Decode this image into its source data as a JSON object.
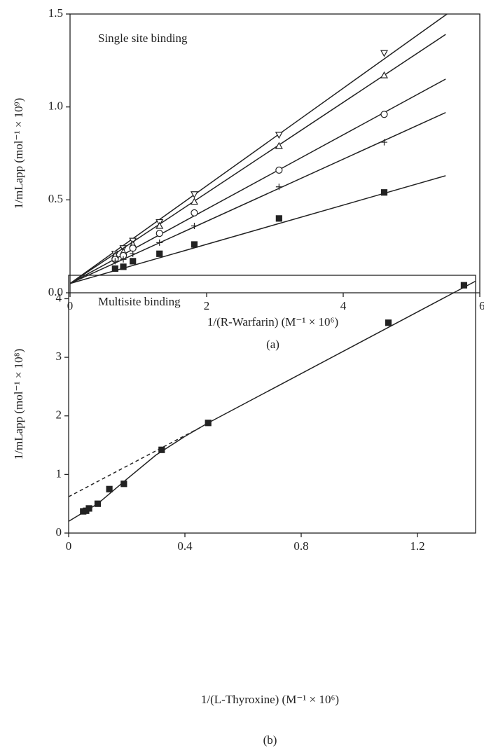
{
  "chart_data": [
    {
      "type": "scatter",
      "title": "Single site binding",
      "panel_label": "(a)",
      "x_label": "1/(R-Warfarin) (M⁻¹ × 10⁶)",
      "y_label": "1/mLapp (mol⁻¹ × 10⁹)",
      "xlim": [
        0,
        6
      ],
      "ylim": [
        0,
        1.5
      ],
      "xticks": [
        0,
        2,
        4,
        6
      ],
      "yticks": [
        {
          "value": 0,
          "label": "0.0"
        },
        0.5,
        {
          "value": 1,
          "label": "1.0"
        },
        1.5
      ],
      "x": [
        0.66,
        0.78,
        0.92,
        1.31,
        1.82,
        3.06,
        4.6
      ],
      "series": [
        {
          "marker": "triangle-down",
          "color": "#222",
          "values": [
            0.21,
            0.24,
            0.28,
            0.38,
            0.53,
            0.85,
            1.29
          ],
          "fit_x": [
            0,
            5.52
          ],
          "fit_values": [
            0.05,
            1.5
          ]
        },
        {
          "marker": "triangle-up",
          "color": "#222",
          "values": [
            0.2,
            0.22,
            0.26,
            0.36,
            0.49,
            0.79,
            1.17
          ],
          "fit_x": [
            0,
            5.5
          ],
          "fit_values": [
            0.05,
            1.39
          ]
        },
        {
          "marker": "circle",
          "color": "#222",
          "values": [
            0.18,
            0.2,
            0.24,
            0.32,
            0.43,
            0.66,
            0.96
          ],
          "fit_x": [
            0,
            5.5
          ],
          "fit_values": [
            0.05,
            1.15
          ]
        },
        {
          "marker": "plus",
          "color": "#222",
          "values": [
            0.17,
            0.18,
            0.21,
            0.27,
            0.36,
            0.57,
            0.81
          ],
          "fit_x": [
            0,
            5.5
          ],
          "fit_values": [
            0.05,
            0.97
          ]
        },
        {
          "marker": "square",
          "color": "#222",
          "values": [
            0.13,
            0.14,
            0.17,
            0.21,
            0.26,
            0.4,
            0.54
          ],
          "fit_x": [
            0,
            5.5
          ],
          "fit_values": [
            0.05,
            0.63
          ]
        }
      ]
    },
    {
      "type": "scatter",
      "title": "Multisite binding",
      "panel_label": "(b)",
      "x_label": "1/(L-Thyroxine) (M⁻¹ × 10⁶)",
      "y_label": "1/mLapp (mol⁻¹ × 10⁸)",
      "xlim": [
        0,
        1.4
      ],
      "ylim": [
        0,
        4.4
      ],
      "xticks": [
        0,
        0.4,
        0.8,
        1.2
      ],
      "yticks": [
        0,
        1,
        2,
        3,
        4
      ],
      "x": [
        0.05,
        0.06,
        0.07,
        0.1,
        0.14,
        0.19,
        0.32,
        0.48,
        1.1,
        1.36
      ],
      "series": [
        {
          "marker": "square",
          "color": "#222",
          "values": [
            0.37,
            0.38,
            0.42,
            0.5,
            0.75,
            0.84,
            1.42,
            1.88,
            3.59,
            4.23
          ],
          "fit_x": [
            0,
            0.1,
            0.2,
            0.3,
            0.4,
            0.48,
            1.4
          ],
          "fit_values": [
            0.2,
            0.5,
            0.92,
            1.33,
            1.65,
            1.88,
            4.3
          ],
          "extrapolation_x": [
            0,
            0.46
          ],
          "extrapolation_values": [
            0.62,
            1.82
          ]
        }
      ]
    }
  ]
}
